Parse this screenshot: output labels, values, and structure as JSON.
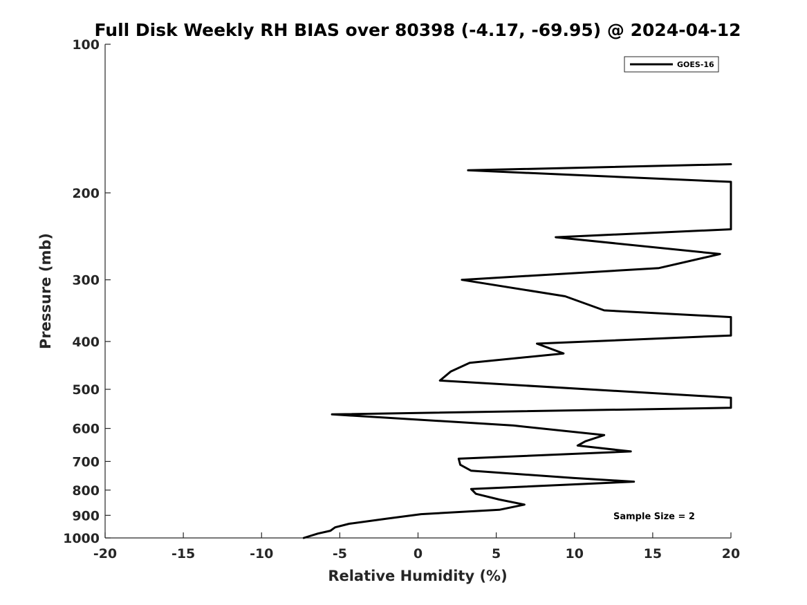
{
  "chart_data": {
    "type": "line",
    "title": "Full Disk Weekly RH BIAS over 80398 (-4.17, -69.95) @ 2024-04-12",
    "xlabel": "Relative Humidity (%)",
    "ylabel": "Pressure (mb)",
    "xlim": [
      -20,
      20
    ],
    "ylim": [
      100,
      1000
    ],
    "y_scale": "log",
    "y_reversed": true,
    "grid": false,
    "x_ticks": [
      -20,
      -15,
      -10,
      -5,
      0,
      5,
      10,
      15,
      20
    ],
    "x_tick_labels": [
      "-20",
      "-15",
      "-10",
      "-5",
      "0",
      "5",
      "10",
      "15",
      "20"
    ],
    "y_ticks": [
      100,
      200,
      300,
      400,
      500,
      600,
      700,
      800,
      900,
      1000
    ],
    "y_tick_labels": [
      "100",
      "200",
      "300",
      "400",
      "500",
      "600",
      "700",
      "800",
      "900",
      "1000"
    ],
    "legend": {
      "position": "top-right",
      "entries": [
        "GOES-16"
      ]
    },
    "annotation": "Sample Size = 2",
    "series": [
      {
        "name": "GOES-16",
        "color": "#000000",
        "points": [
          [
            20,
            175
          ],
          [
            3.2,
            180
          ],
          [
            20,
            190
          ],
          [
            20,
            237
          ],
          [
            8.8,
            246
          ],
          [
            19.3,
            266
          ],
          [
            15.4,
            284
          ],
          [
            2.8,
            300
          ],
          [
            9.4,
            324
          ],
          [
            11.9,
            346
          ],
          [
            20,
            357
          ],
          [
            20,
            389
          ],
          [
            7.6,
            404
          ],
          [
            9.3,
            423
          ],
          [
            3.3,
            442
          ],
          [
            2.1,
            460
          ],
          [
            1.4,
            480
          ],
          [
            20,
            520
          ],
          [
            20,
            545
          ],
          [
            -5.5,
            562
          ],
          [
            6.1,
            592
          ],
          [
            11.9,
            619
          ],
          [
            10.7,
            637
          ],
          [
            10.2,
            650
          ],
          [
            13.6,
            668
          ],
          [
            2.6,
            691
          ],
          [
            2.7,
            711
          ],
          [
            3.4,
            731
          ],
          [
            9.9,
            756
          ],
          [
            13.8,
            769
          ],
          [
            3.4,
            796
          ],
          [
            3.7,
            814
          ],
          [
            5.2,
            836
          ],
          [
            6.8,
            856
          ],
          [
            5.2,
            877
          ],
          [
            0.2,
            895
          ],
          [
            -2.0,
            914
          ],
          [
            -4.4,
            936
          ],
          [
            -5.3,
            952
          ],
          [
            -5.6,
            967
          ],
          [
            -6.4,
            980
          ],
          [
            -7.3,
            1000
          ]
        ]
      }
    ]
  }
}
